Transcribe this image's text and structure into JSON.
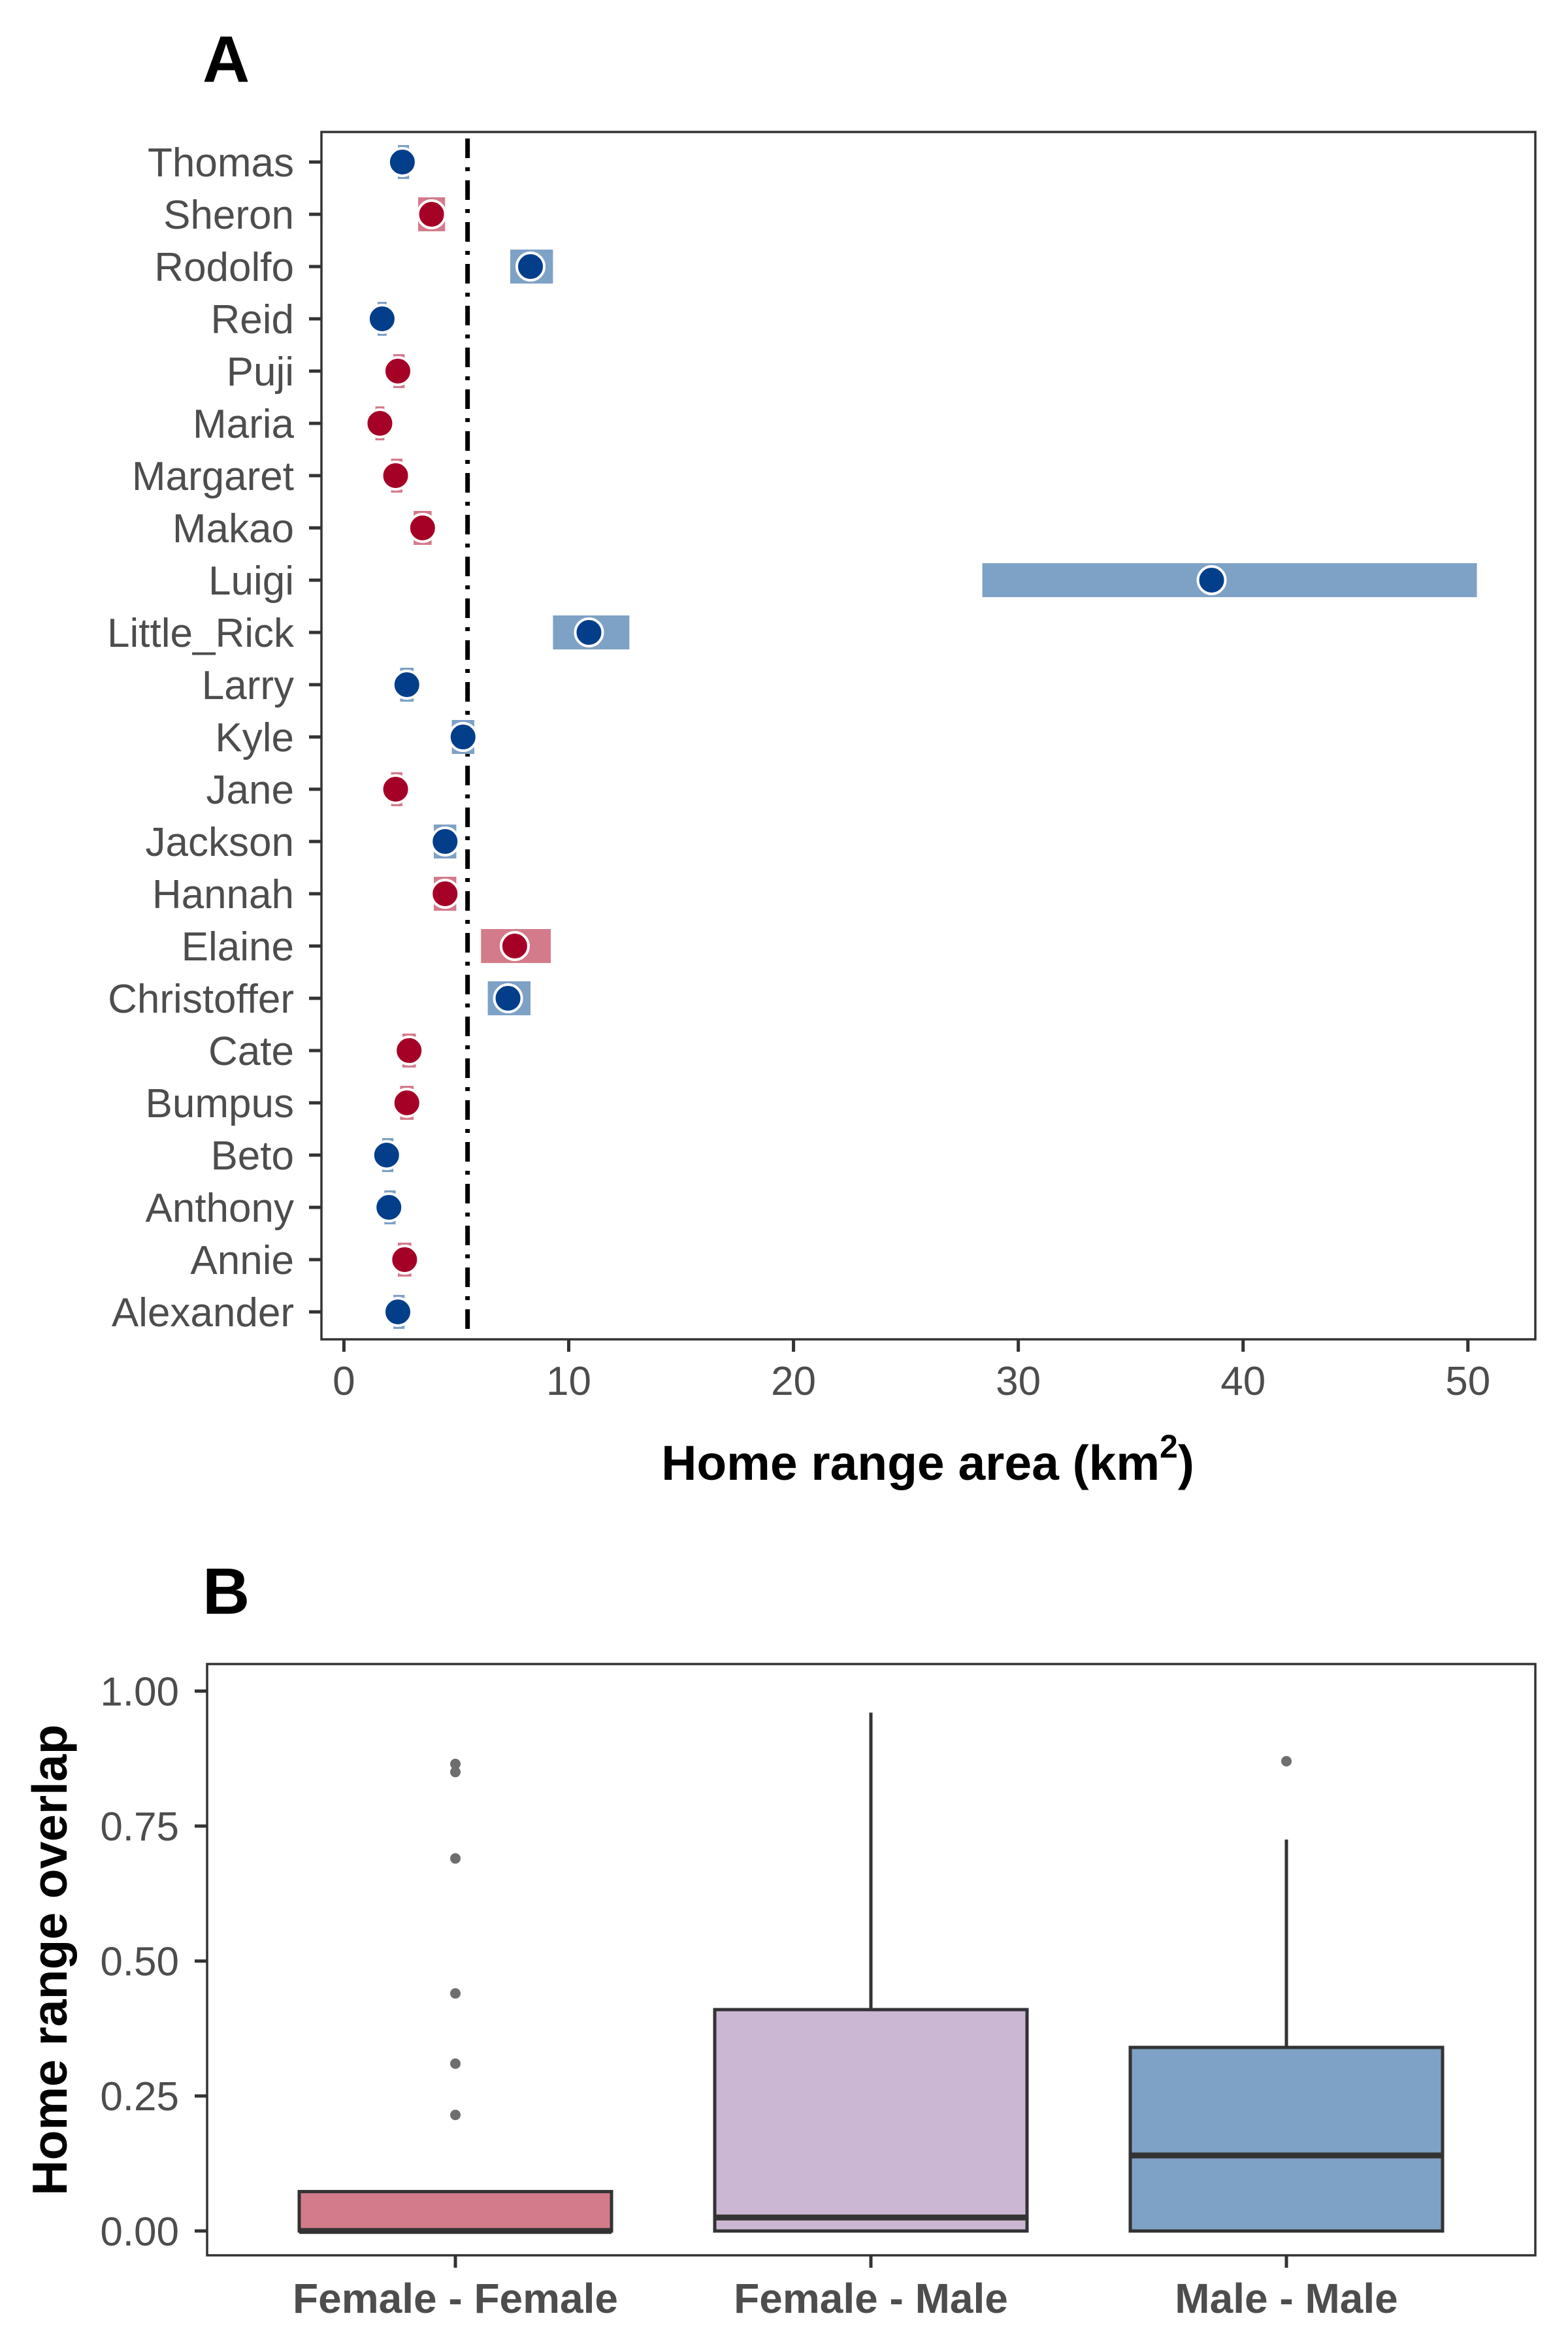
{
  "chart_data": [
    {
      "type": "scatter",
      "panel_label": "A",
      "xlabel": "Home range area (km",
      "xlabel_superscript": "2",
      "xlabel_suffix": ")",
      "xlim": [
        -1,
        53
      ],
      "xticks": [
        0,
        10,
        20,
        30,
        40,
        50
      ],
      "reference_line_x": 5.5,
      "grid": false,
      "colors": {
        "Female": "#a50026",
        "Male": "#023e8a",
        "Female_ci": "#d47b8b",
        "Male_ci": "#7ea1c6"
      },
      "categories": [
        "Thomas",
        "Sheron",
        "Rodolfo",
        "Reid",
        "Puji",
        "Maria",
        "Margaret",
        "Makao",
        "Luigi",
        "Little_Rick",
        "Larry",
        "Kyle",
        "Jane",
        "Jackson",
        "Hannah",
        "Elaine",
        "Christoffer",
        "Cate",
        "Bumpus",
        "Beto",
        "Anthony",
        "Annie",
        "Alexander"
      ],
      "points": [
        {
          "name": "Thomas",
          "sex": "Male",
          "value": 2.6,
          "lo": 2.4,
          "hi": 2.9
        },
        {
          "name": "Sheron",
          "sex": "Female",
          "value": 3.9,
          "lo": 3.3,
          "hi": 4.5
        },
        {
          "name": "Rodolfo",
          "sex": "Male",
          "value": 8.3,
          "lo": 7.4,
          "hi": 9.3
        },
        {
          "name": "Reid",
          "sex": "Male",
          "value": 1.7,
          "lo": 1.5,
          "hi": 1.9
        },
        {
          "name": "Puji",
          "sex": "Female",
          "value": 2.4,
          "lo": 2.2,
          "hi": 2.7
        },
        {
          "name": "Maria",
          "sex": "Female",
          "value": 1.6,
          "lo": 1.4,
          "hi": 1.8
        },
        {
          "name": "Margaret",
          "sex": "Female",
          "value": 2.3,
          "lo": 2.1,
          "hi": 2.6
        },
        {
          "name": "Makao",
          "sex": "Female",
          "value": 3.5,
          "lo": 3.1,
          "hi": 3.9
        },
        {
          "name": "Luigi",
          "sex": "Male",
          "value": 38.6,
          "lo": 28.4,
          "hi": 50.4
        },
        {
          "name": "Little_Rick",
          "sex": "Male",
          "value": 10.9,
          "lo": 9.3,
          "hi": 12.7
        },
        {
          "name": "Larry",
          "sex": "Male",
          "value": 2.8,
          "lo": 2.5,
          "hi": 3.1
        },
        {
          "name": "Kyle",
          "sex": "Male",
          "value": 5.3,
          "lo": 4.8,
          "hi": 5.8
        },
        {
          "name": "Jane",
          "sex": "Female",
          "value": 2.3,
          "lo": 2.1,
          "hi": 2.6
        },
        {
          "name": "Jackson",
          "sex": "Male",
          "value": 4.5,
          "lo": 4.0,
          "hi": 5.0
        },
        {
          "name": "Hannah",
          "sex": "Female",
          "value": 4.5,
          "lo": 4.0,
          "hi": 5.0
        },
        {
          "name": "Elaine",
          "sex": "Female",
          "value": 7.6,
          "lo": 6.1,
          "hi": 9.2
        },
        {
          "name": "Christoffer",
          "sex": "Male",
          "value": 7.3,
          "lo": 6.4,
          "hi": 8.3
        },
        {
          "name": "Cate",
          "sex": "Female",
          "value": 2.9,
          "lo": 2.6,
          "hi": 3.2
        },
        {
          "name": "Bumpus",
          "sex": "Female",
          "value": 2.8,
          "lo": 2.5,
          "hi": 3.1
        },
        {
          "name": "Beto",
          "sex": "Male",
          "value": 1.9,
          "lo": 1.7,
          "hi": 2.2
        },
        {
          "name": "Anthony",
          "sex": "Male",
          "value": 2.0,
          "lo": 1.8,
          "hi": 2.3
        },
        {
          "name": "Annie",
          "sex": "Female",
          "value": 2.7,
          "lo": 2.4,
          "hi": 3.0
        },
        {
          "name": "Alexander",
          "sex": "Male",
          "value": 2.4,
          "lo": 2.2,
          "hi": 2.7
        }
      ]
    },
    {
      "type": "box",
      "panel_label": "B",
      "ylabel": "Home range overlap",
      "ylim": [
        -0.045,
        1.05
      ],
      "yticks": [
        0.0,
        0.25,
        0.5,
        0.75,
        1.0
      ],
      "ytick_labels": [
        "0.00",
        "0.25",
        "0.50",
        "0.75",
        "1.00"
      ],
      "grid": false,
      "categories": [
        "Female - Female",
        "Female - Male",
        "Male - Male"
      ],
      "boxes": [
        {
          "name": "Female - Female",
          "color": "#d47b8b",
          "whisker_low": 0.0,
          "q1": 0.0,
          "median": 0.0,
          "q3": 0.073,
          "whisker_high": 0.073,
          "outliers": [
            0.215,
            0.31,
            0.44,
            0.69,
            0.85,
            0.865
          ]
        },
        {
          "name": "Female - Male",
          "color": "#cbb7d4",
          "whisker_low": 0.0,
          "q1": 0.0,
          "median": 0.025,
          "q3": 0.41,
          "whisker_high": 0.96,
          "outliers": []
        },
        {
          "name": "Male - Male",
          "color": "#7ea1c6",
          "whisker_low": 0.0,
          "q1": 0.0,
          "median": 0.14,
          "q3": 0.34,
          "whisker_high": 0.725,
          "outliers": [
            0.87
          ]
        }
      ]
    }
  ]
}
